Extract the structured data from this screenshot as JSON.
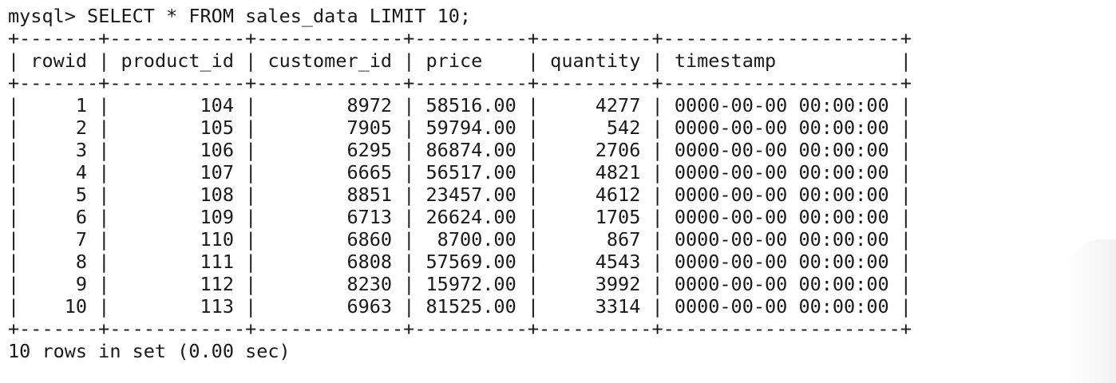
{
  "prompt": "mysql>",
  "command": "SELECT * FROM sales_data LIMIT 10;",
  "columns": [
    {
      "name": "rowid",
      "align": "right"
    },
    {
      "name": "product_id",
      "align": "right"
    },
    {
      "name": "customer_id",
      "align": "right"
    },
    {
      "name": "price",
      "align": "right"
    },
    {
      "name": "quantity",
      "align": "right"
    },
    {
      "name": "timestamp",
      "align": "left"
    }
  ],
  "rows": [
    [
      "1",
      "104",
      "8972",
      "58516.00",
      "4277",
      "0000-00-00 00:00:00"
    ],
    [
      "2",
      "105",
      "7905",
      "59794.00",
      "542",
      "0000-00-00 00:00:00"
    ],
    [
      "3",
      "106",
      "6295",
      "86874.00",
      "2706",
      "0000-00-00 00:00:00"
    ],
    [
      "4",
      "107",
      "6665",
      "56517.00",
      "4821",
      "0000-00-00 00:00:00"
    ],
    [
      "5",
      "108",
      "8851",
      "23457.00",
      "4612",
      "0000-00-00 00:00:00"
    ],
    [
      "6",
      "109",
      "6713",
      "26624.00",
      "1705",
      "0000-00-00 00:00:00"
    ],
    [
      "7",
      "110",
      "6860",
      "8700.00",
      "867",
      "0000-00-00 00:00:00"
    ],
    [
      "8",
      "111",
      "6808",
      "57569.00",
      "4543",
      "0000-00-00 00:00:00"
    ],
    [
      "9",
      "112",
      "8230",
      "15972.00",
      "3992",
      "0000-00-00 00:00:00"
    ],
    [
      "10",
      "113",
      "6963",
      "81525.00",
      "3314",
      "0000-00-00 00:00:00"
    ]
  ],
  "result_summary": "10 rows in set (0.00 sec)"
}
